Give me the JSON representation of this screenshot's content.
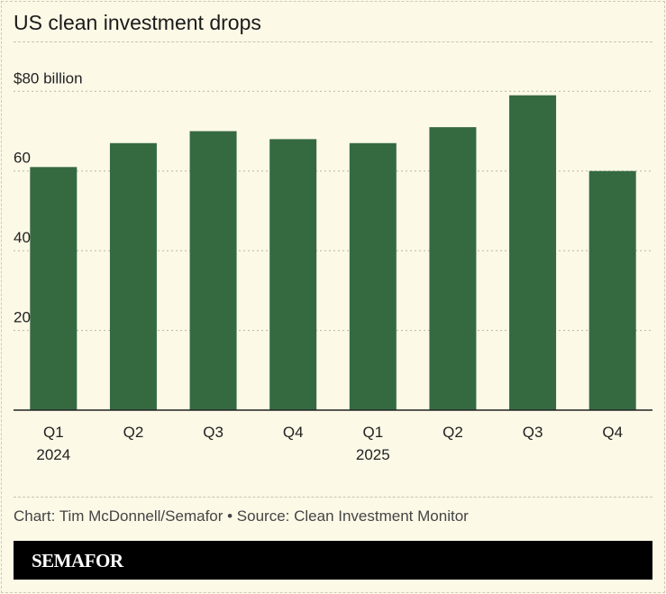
{
  "chart_data": {
    "type": "bar",
    "title": "US clean investment drops",
    "ylabel": "",
    "y_unit_label": "$80 billion",
    "categories": [
      "Q1 2024",
      "Q2",
      "Q3",
      "Q4",
      "Q1 2025",
      "Q2",
      "Q3",
      "Q4"
    ],
    "category_lines": [
      [
        "Q1",
        "2024"
      ],
      [
        "Q2"
      ],
      [
        "Q3"
      ],
      [
        "Q4"
      ],
      [
        "Q1",
        "2025"
      ],
      [
        "Q2"
      ],
      [
        "Q3"
      ],
      [
        "Q4"
      ]
    ],
    "values": [
      61,
      67,
      70,
      68,
      67,
      71,
      79,
      60
    ],
    "ylim": [
      0,
      80
    ],
    "yticks": [
      20,
      40,
      60,
      80
    ],
    "ytick_labels": [
      "20",
      "40",
      "60",
      "$80 billion"
    ],
    "grid": true,
    "bar_color": "#356a41"
  },
  "footer": {
    "credit": "Chart: Tim McDonnell/Semafor • Source: Clean Investment Monitor",
    "brand": "SEMAFOR"
  }
}
